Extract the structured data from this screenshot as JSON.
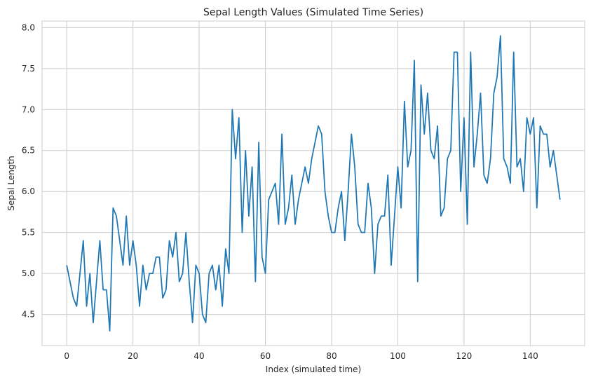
{
  "chart_data": {
    "type": "line",
    "title": "Sepal Length Values (Simulated Time Series)",
    "xlabel": "Index (simulated time)",
    "ylabel": "Sepal Length",
    "xlim": [
      -7.45,
      156.45
    ],
    "ylim": [
      4.12,
      8.08
    ],
    "xticks": [
      0,
      20,
      40,
      60,
      80,
      100,
      120,
      140
    ],
    "yticks": [
      4.5,
      5.0,
      5.5,
      6.0,
      6.5,
      7.0,
      7.5,
      8.0
    ],
    "xtick_labels": [
      "0",
      "20",
      "40",
      "60",
      "80",
      "100",
      "120",
      "140"
    ],
    "ytick_labels": [
      "4.5",
      "5.0",
      "5.5",
      "6.0",
      "6.5",
      "7.0",
      "7.5",
      "8.0"
    ],
    "grid": true,
    "line_color": "#1f77b4",
    "series": [
      {
        "x": [
          0,
          1,
          2,
          3,
          4,
          5,
          6,
          7,
          8,
          9,
          10,
          11,
          12,
          13,
          14,
          15,
          16,
          17,
          18,
          19,
          20,
          21,
          22,
          23,
          24,
          25,
          26,
          27,
          28,
          29,
          30,
          31,
          32,
          33,
          34,
          35,
          36,
          37,
          38,
          39,
          40,
          41,
          42,
          43,
          44,
          45,
          46,
          47,
          48,
          49,
          50,
          51,
          52,
          53,
          54,
          55,
          56,
          57,
          58,
          59,
          60,
          61,
          62,
          63,
          64,
          65,
          66,
          67,
          68,
          69,
          70,
          71,
          72,
          73,
          74,
          75,
          76,
          77,
          78,
          79,
          80,
          81,
          82,
          83,
          84,
          85,
          86,
          87,
          88,
          89,
          90,
          91,
          92,
          93,
          94,
          95,
          96,
          97,
          98,
          99,
          100,
          101,
          102,
          103,
          104,
          105,
          106,
          107,
          108,
          109,
          110,
          111,
          112,
          113,
          114,
          115,
          116,
          117,
          118,
          119,
          120,
          121,
          122,
          123,
          124,
          125,
          126,
          127,
          128,
          129,
          130,
          131,
          132,
          133,
          134,
          135,
          136,
          137,
          138,
          139,
          140,
          141,
          142,
          143,
          144,
          145,
          146,
          147,
          148,
          149
        ],
        "values": [
          5.1,
          4.9,
          4.7,
          4.6,
          5.0,
          5.4,
          4.6,
          5.0,
          4.4,
          4.9,
          5.4,
          4.8,
          4.8,
          4.3,
          5.8,
          5.7,
          5.4,
          5.1,
          5.7,
          5.1,
          5.4,
          5.1,
          4.6,
          5.1,
          4.8,
          5.0,
          5.0,
          5.2,
          5.2,
          4.7,
          4.8,
          5.4,
          5.2,
          5.5,
          4.9,
          5.0,
          5.5,
          4.9,
          4.4,
          5.1,
          5.0,
          4.5,
          4.4,
          5.0,
          5.1,
          4.8,
          5.1,
          4.6,
          5.3,
          5.0,
          7.0,
          6.4,
          6.9,
          5.5,
          6.5,
          5.7,
          6.3,
          4.9,
          6.6,
          5.2,
          5.0,
          5.9,
          6.0,
          6.1,
          5.6,
          6.7,
          5.6,
          5.8,
          6.2,
          5.6,
          5.9,
          6.1,
          6.3,
          6.1,
          6.4,
          6.6,
          6.8,
          6.7,
          6.0,
          5.7,
          5.5,
          5.5,
          5.8,
          6.0,
          5.4,
          6.0,
          6.7,
          6.3,
          5.6,
          5.5,
          5.5,
          6.1,
          5.8,
          5.0,
          5.6,
          5.7,
          5.7,
          6.2,
          5.1,
          5.7,
          6.3,
          5.8,
          7.1,
          6.3,
          6.5,
          7.6,
          4.9,
          7.3,
          6.7,
          7.2,
          6.5,
          6.4,
          6.8,
          5.7,
          5.8,
          6.4,
          6.5,
          7.7,
          7.7,
          6.0,
          6.9,
          5.6,
          7.7,
          6.3,
          6.7,
          7.2,
          6.2,
          6.1,
          6.4,
          7.2,
          7.4,
          7.9,
          6.4,
          6.3,
          6.1,
          7.7,
          6.3,
          6.4,
          6.0,
          6.9,
          6.7,
          6.9,
          5.8,
          6.8,
          6.7,
          6.7,
          6.3,
          6.5,
          6.2,
          5.9
        ]
      }
    ]
  }
}
